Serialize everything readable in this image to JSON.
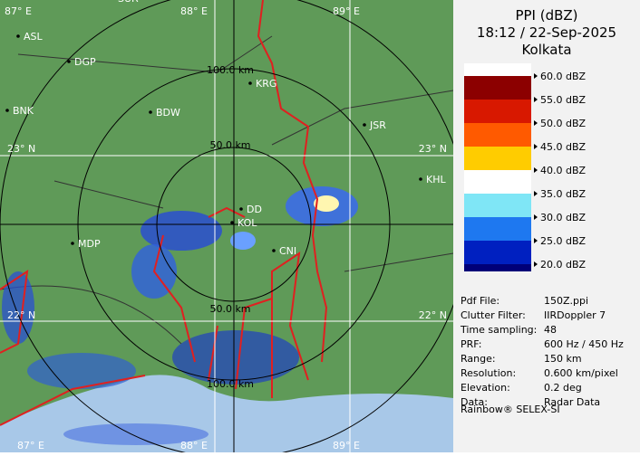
{
  "map": {
    "grid_labels": [
      "87° E",
      "88° E",
      "89° E",
      "23° N",
      "22° N",
      "23° N",
      "22° N",
      "87° E",
      "88° E",
      "89° E"
    ],
    "range_labels": [
      "100.0 km",
      "50.0 km",
      "50.0 km",
      "100.0 km"
    ],
    "places": [
      "SUR",
      "ASL",
      "DGP",
      "BNK",
      "BDW",
      "KRG",
      "JSR",
      "KHL",
      "MDP",
      "DD",
      "KOL",
      "CNI"
    ]
  },
  "panel": {
    "title": "PPI (dBZ)",
    "time": "18:12 / 22-Sep-2025",
    "location": "Kolkata",
    "legend": [
      {
        "label": "60.0 dBZ",
        "color": "#8c0000"
      },
      {
        "label": "55.0 dBZ",
        "color": "#d81800"
      },
      {
        "label": "50.0 dBZ",
        "color": "#ff5a00"
      },
      {
        "label": "45.0 dBZ",
        "color": "#ffcc00"
      },
      {
        "label": "40.0 dBZ",
        "color": "#ffffff"
      },
      {
        "label": "35.0 dBZ",
        "color": "#7fe6f6"
      },
      {
        "label": "30.0 dBZ",
        "color": "#1e78f0"
      },
      {
        "label": "25.0 dBZ",
        "color": "#0020c0"
      },
      {
        "label": "20.0 dBZ",
        "color": "#000078"
      }
    ],
    "info": [
      [
        "Pdf File:",
        "150Z.ppi"
      ],
      [
        "Clutter Filter:",
        "IIRDoppler 7"
      ],
      [
        "Time sampling:",
        "48"
      ],
      [
        "PRF:",
        "600 Hz / 450 Hz"
      ],
      [
        "Range:",
        "150 km"
      ],
      [
        "Resolution:",
        "0.600 km/pixel"
      ],
      [
        "Elevation:",
        "0.2 deg"
      ],
      [
        "Data:",
        "Radar Data"
      ]
    ],
    "footer": "Rainbow® SELEX-SI"
  }
}
